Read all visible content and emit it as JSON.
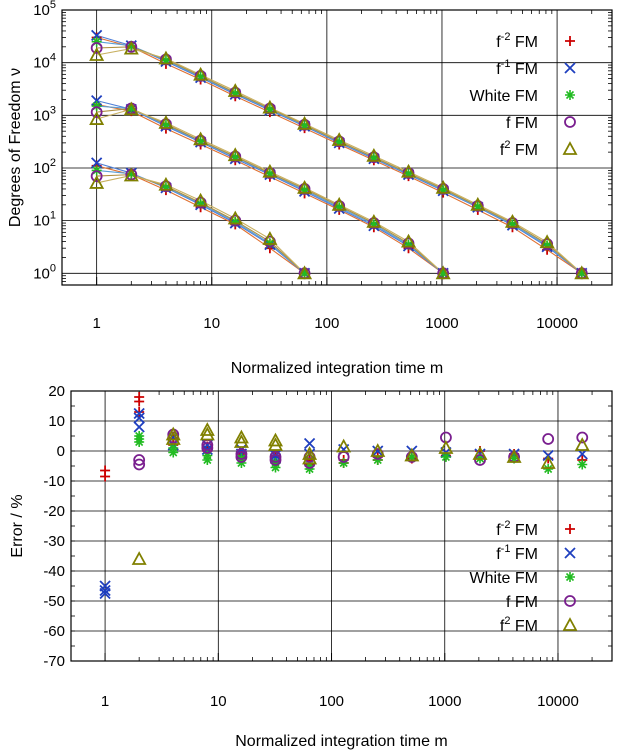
{
  "chart_data": [
    {
      "type": "scatter",
      "xlabel": "Normalized integration time m",
      "ylabel": "Degrees of Freedom ν",
      "xscale": "log",
      "yscale": "log",
      "xlim": [
        0.5,
        30000
      ],
      "ylim": [
        0.6,
        100000
      ],
      "grid": true,
      "legend_position": "top-right",
      "x_ticks": [
        1,
        10,
        100,
        1000,
        10000
      ],
      "x_tick_labels": [
        "1",
        "10",
        "100",
        "1000",
        "10000"
      ],
      "y_ticks": [
        1,
        10,
        100,
        1000,
        10000,
        100000
      ],
      "y_tick_labels": [
        [
          "10",
          "0"
        ],
        [
          "10",
          "1"
        ],
        [
          "10",
          "2"
        ],
        [
          "10",
          "3"
        ],
        [
          "10",
          "4"
        ],
        [
          "10",
          "5"
        ]
      ],
      "series": [
        {
          "name": "f-2 FM",
          "name_base": "f",
          "name_sup": "-2",
          "name_suffix": " FM",
          "color": "#cc0000",
          "marker": "plus",
          "line_color": "#e07030",
          "groups": [
            {
              "x": [
                1,
                2,
                4,
                8,
                16,
                32,
                64
              ],
              "y": [
                110,
                75,
                38,
                18,
                8.5,
                3,
                1
              ]
            },
            {
              "x": [
                1,
                2,
                4,
                8,
                16,
                32,
                64,
                128,
                256,
                512,
                1024
              ],
              "y": [
                1600,
                1200,
                560,
                280,
                140,
                68,
                33,
                16,
                7.5,
                3,
                1
              ]
            },
            {
              "x": [
                1,
                2,
                4,
                8,
                16,
                32,
                64,
                128,
                256,
                512,
                1024,
                2048,
                4096,
                8192,
                16384
              ],
              "y": [
                30000,
                20000,
                9500,
                4800,
                2300,
                1150,
                570,
                280,
                140,
                70,
                34,
                16,
                7.5,
                2.8,
                1
              ]
            }
          ]
        },
        {
          "name": "f-1 FM",
          "name_base": "f",
          "name_sup": "-1",
          "name_suffix": " FM",
          "color": "#1f3fbf",
          "marker": "cross",
          "line_color": "#4f7fd8",
          "groups": [
            {
              "x": [
                1,
                2,
                4,
                8,
                16,
                32,
                64
              ],
              "y": [
                125,
                80,
                42,
                20,
                9,
                3.5,
                1
              ]
            },
            {
              "x": [
                1,
                2,
                4,
                8,
                16,
                32,
                64,
                128,
                256,
                512,
                1024
              ],
              "y": [
                1900,
                1300,
                620,
                310,
                150,
                75,
                36,
                17,
                8,
                3.3,
                1
              ]
            },
            {
              "x": [
                1,
                2,
                4,
                8,
                16,
                32,
                64,
                128,
                256,
                512,
                1024,
                2048,
                4096,
                8192,
                16384
              ],
              "y": [
                33000,
                21000,
                10500,
                5200,
                2500,
                1250,
                620,
                300,
                150,
                75,
                37,
                18,
                8.2,
                3.2,
                1
              ]
            }
          ]
        },
        {
          "name": "White FM",
          "name_base": "White FM",
          "name_sup": "",
          "name_suffix": "",
          "color": "#22bb22",
          "marker": "asterisk",
          "line_color": "#5aa0d8",
          "groups": [
            {
              "x": [
                1,
                2,
                4,
                8,
                16,
                32,
                64
              ],
              "y": [
                90,
                78,
                43,
                21,
                9.5,
                3.7,
                1
              ]
            },
            {
              "x": [
                1,
                2,
                4,
                8,
                16,
                32,
                64,
                128,
                256,
                512,
                1024
              ],
              "y": [
                1500,
                1350,
                650,
                320,
                160,
                78,
                38,
                18,
                8.5,
                3.5,
                1
              ]
            },
            {
              "x": [
                1,
                2,
                4,
                8,
                16,
                32,
                64,
                128,
                256,
                512,
                1024,
                2048,
                4096,
                8192,
                16384
              ],
              "y": [
                25000,
                21000,
                11000,
                5400,
                2600,
                1300,
                640,
                310,
                155,
                78,
                38,
                18.5,
                8.5,
                3.4,
                1
              ]
            }
          ]
        },
        {
          "name": "f FM",
          "name_base": "f",
          "name_sup": "",
          "name_suffix": " FM",
          "color": "#7a1f8f",
          "marker": "circle",
          "line_color": "#b09040",
          "groups": [
            {
              "x": [
                1,
                2,
                4,
                8,
                16,
                32,
                64
              ],
              "y": [
                70,
                75,
                45,
                22,
                10,
                4,
                1
              ]
            },
            {
              "x": [
                1,
                2,
                4,
                8,
                16,
                32,
                64,
                128,
                256,
                512,
                1024
              ],
              "y": [
                1150,
                1350,
                680,
                330,
                165,
                80,
                40,
                19,
                9,
                3.7,
                1
              ]
            },
            {
              "x": [
                1,
                2,
                4,
                8,
                16,
                32,
                64,
                128,
                256,
                512,
                1024,
                2048,
                4096,
                8192,
                16384
              ],
              "y": [
                19000,
                20000,
                11500,
                5600,
                2700,
                1350,
                660,
                320,
                160,
                80,
                40,
                19,
                9,
                3.6,
                1
              ]
            }
          ]
        },
        {
          "name": "f2 FM",
          "name_base": "f",
          "name_sup": "2",
          "name_suffix": " FM",
          "color": "#808000",
          "marker": "triangle",
          "line_color": "#c8b060",
          "groups": [
            {
              "x": [
                1,
                2,
                4,
                8,
                16,
                32,
                64
              ],
              "y": [
                52,
                72,
                48,
                24,
                11,
                4.5,
                1
              ]
            },
            {
              "x": [
                1,
                2,
                4,
                8,
                16,
                32,
                64,
                128,
                256,
                512,
                1024
              ],
              "y": [
                850,
                1300,
                720,
                350,
                175,
                85,
                42,
                20,
                9.5,
                4,
                1
              ]
            },
            {
              "x": [
                1,
                2,
                4,
                8,
                16,
                32,
                64,
                128,
                256,
                512,
                1024,
                2048,
                4096,
                8192,
                16384
              ],
              "y": [
                14000,
                18500,
                12000,
                5900,
                2900,
                1400,
                690,
                340,
                170,
                85,
                42,
                20,
                9.5,
                3.9,
                1
              ]
            }
          ]
        }
      ]
    },
    {
      "type": "scatter",
      "xlabel": "Normalized integration time m",
      "ylabel": "Error / %",
      "xscale": "log",
      "yscale": "linear",
      "xlim": [
        0.5,
        30000
      ],
      "ylim": [
        -70,
        20
      ],
      "grid": true,
      "legend_position": "bottom-right",
      "x_ticks": [
        1,
        10,
        100,
        1000,
        10000
      ],
      "x_tick_labels": [
        "1",
        "10",
        "100",
        "1000",
        "10000"
      ],
      "y_ticks": [
        20,
        10,
        0,
        -10,
        -20,
        -30,
        -40,
        -50,
        -60,
        -70
      ],
      "y_tick_labels": [
        "20",
        "10",
        "0",
        "-10",
        "-20",
        "-30",
        "-40",
        "-50",
        "-60",
        "-70"
      ],
      "series": [
        {
          "name": "f-2 FM",
          "name_base": "f",
          "name_sup": "-2",
          "name_suffix": " FM",
          "color": "#cc0000",
          "marker": "plus",
          "x": [
            1,
            1,
            2,
            2,
            2,
            4,
            4,
            8,
            8,
            16,
            16,
            32,
            32,
            64,
            64,
            128,
            128,
            256,
            256,
            512,
            1024,
            2048,
            4096,
            8192,
            16384
          ],
          "y": [
            -6.5,
            -8.5,
            18,
            16.5,
            13,
            4,
            2,
            1.5,
            0,
            -1,
            -2,
            -2,
            -4,
            -3,
            -4.5,
            -3,
            -4,
            -2,
            -3,
            -2.5,
            -1.5,
            0,
            -1,
            -2.5,
            -3
          ]
        },
        {
          "name": "f-1 FM",
          "name_base": "f",
          "name_sup": "-1",
          "name_suffix": " FM",
          "color": "#1f3fbf",
          "marker": "cross",
          "x": [
            1,
            1,
            1,
            2,
            2,
            2,
            4,
            4,
            8,
            8,
            16,
            16,
            32,
            32,
            64,
            64,
            128,
            256,
            512,
            1024,
            2048,
            4096,
            8192,
            16384
          ],
          "y": [
            -45,
            -47.5,
            -46.5,
            12.5,
            11,
            8,
            4.5,
            2,
            2,
            0.5,
            0.5,
            -1,
            -1.5,
            -2.5,
            2.5,
            -1,
            0.5,
            0,
            0,
            -0.5,
            -1,
            -1,
            -1.5,
            -1
          ]
        },
        {
          "name": "White FM",
          "name_base": "White FM",
          "name_sup": "",
          "name_suffix": "",
          "color": "#22bb22",
          "marker": "asterisk",
          "x": [
            2,
            2,
            2,
            4,
            4,
            8,
            8,
            16,
            16,
            32,
            32,
            64,
            64,
            128,
            256,
            512,
            1024,
            2048,
            4096,
            8192,
            16384
          ],
          "y": [
            5,
            4,
            3,
            1,
            -0.5,
            -1.5,
            -3,
            -2.5,
            -4,
            -4,
            -5.5,
            -5,
            -6,
            -4,
            -3,
            -2,
            -2,
            -2.5,
            -2.5,
            -6,
            -4.5
          ]
        },
        {
          "name": "f FM",
          "name_base": "f",
          "name_sup": "",
          "name_suffix": " FM",
          "color": "#7a1f8f",
          "marker": "circle",
          "x": [
            2,
            2,
            4,
            4,
            8,
            8,
            16,
            16,
            32,
            32,
            64,
            64,
            128,
            256,
            512,
            1024,
            2048,
            4096,
            8192,
            16384
          ],
          "y": [
            -3,
            -4.5,
            5.5,
            4.5,
            2,
            1,
            -1,
            -2,
            -2,
            -3,
            -2,
            -4,
            -2,
            -1,
            -2,
            4.5,
            -3,
            -2,
            4,
            4.5
          ]
        },
        {
          "name": "f2 FM",
          "name_base": "f",
          "name_sup": "2",
          "name_suffix": " FM",
          "color": "#808000",
          "marker": "triangle",
          "x": [
            2,
            4,
            4,
            8,
            8,
            16,
            16,
            32,
            32,
            64,
            64,
            128,
            256,
            512,
            1024,
            2048,
            4096,
            8192,
            16384
          ],
          "y": [
            -36,
            5.5,
            4,
            7,
            5.5,
            4.5,
            3,
            3.5,
            2,
            -1,
            -2.5,
            1.5,
            0,
            -1.5,
            1,
            -1,
            -2,
            -4,
            2
          ]
        }
      ]
    }
  ]
}
